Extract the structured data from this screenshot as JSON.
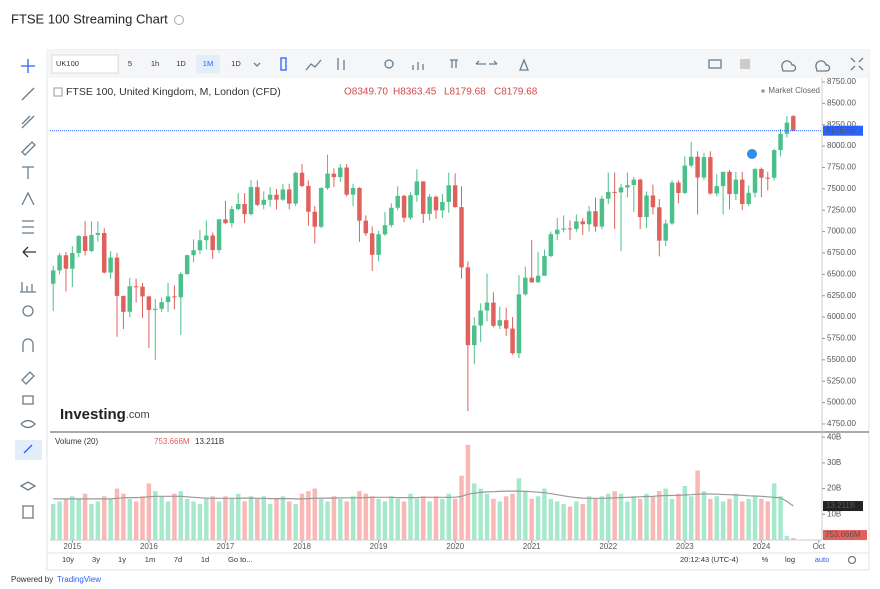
{
  "header": {
    "title": "FTSE 100 Streaming Chart"
  },
  "toolbar": {
    "symbol": "UK100",
    "intervals": [
      "5",
      "1h",
      "1D",
      "1M",
      "1D"
    ]
  },
  "chart_data": {
    "type": "candlestick",
    "legend_title": "FTSE 100, United Kingdom, M, London (CFD)",
    "ohlc_legend": [
      "O8349.70",
      "H8363.45",
      "L8179.68",
      "C8179.68"
    ],
    "status": "Market Closed",
    "up_color": "#4cc08a",
    "down_color": "#e0605c",
    "last_price": {
      "value": 8179.68,
      "label": "8179.68"
    },
    "xlim": [
      -0.5,
      120.5
    ],
    "xticks": [
      {
        "value": 3,
        "label": "2015"
      },
      {
        "value": 15,
        "label": "2016"
      },
      {
        "value": 27,
        "label": "2017"
      },
      {
        "value": 39,
        "label": "2018"
      },
      {
        "value": 51,
        "label": "2019"
      },
      {
        "value": 63,
        "label": "2020"
      },
      {
        "value": 75,
        "label": "2021"
      },
      {
        "value": 87,
        "label": "2022"
      },
      {
        "value": 99,
        "label": "2023"
      },
      {
        "value": 111,
        "label": "2024"
      },
      {
        "value": 120,
        "label": "Oct"
      }
    ],
    "ylim": [
      4656,
      8773
    ],
    "yticks": [
      {
        "value": 4750,
        "label": "4750.00"
      },
      {
        "value": 5000,
        "label": "5000.00"
      },
      {
        "value": 5250,
        "label": "5250.00"
      },
      {
        "value": 5500,
        "label": "5500.00"
      },
      {
        "value": 5750,
        "label": "5750.00"
      },
      {
        "value": 6000,
        "label": "6000.00"
      },
      {
        "value": 6250,
        "label": "6250.00"
      },
      {
        "value": 6500,
        "label": "6500.00"
      },
      {
        "value": 6750,
        "label": "6750.00"
      },
      {
        "value": 7000,
        "label": "7000.00"
      },
      {
        "value": 7250,
        "label": "7250.00"
      },
      {
        "value": 7500,
        "label": "7500.00"
      },
      {
        "value": 7750,
        "label": "7750.00"
      },
      {
        "value": 8000,
        "label": "8000.00"
      },
      {
        "value": 8250,
        "label": "8250.00"
      },
      {
        "value": 8500,
        "label": "8500.00"
      },
      {
        "value": 8750,
        "label": "8750.00"
      }
    ],
    "candles": [
      [
        6390,
        6600,
        6070,
        6546
      ],
      [
        6546,
        6750,
        6500,
        6723
      ],
      [
        6723,
        6760,
        6300,
        6566
      ],
      [
        6566,
        6830,
        6350,
        6749
      ],
      [
        6749,
        6960,
        6700,
        6947
      ],
      [
        6947,
        7120,
        6720,
        6773
      ],
      [
        6773,
        7120,
        6760,
        6961
      ],
      [
        6961,
        7120,
        6880,
        6984
      ],
      [
        6984,
        7040,
        6510,
        6521
      ],
      [
        6521,
        6770,
        6450,
        6696
      ],
      [
        6696,
        6750,
        5770,
        6248
      ],
      [
        6248,
        6250,
        5860,
        6062
      ],
      [
        6062,
        6460,
        6000,
        6361
      ],
      [
        6361,
        6450,
        6170,
        6356
      ],
      [
        6356,
        6400,
        5990,
        6242
      ],
      [
        6242,
        6250,
        5640,
        6084
      ],
      [
        6084,
        6210,
        5500,
        6097
      ],
      [
        6097,
        6230,
        6060,
        6175
      ],
      [
        6175,
        6400,
        6060,
        6242
      ],
      [
        6242,
        6370,
        6090,
        6231
      ],
      [
        6231,
        6530,
        5790,
        6504
      ],
      [
        6504,
        6730,
        6490,
        6724
      ],
      [
        6724,
        6910,
        6640,
        6782
      ],
      [
        6782,
        7020,
        6740,
        6899
      ],
      [
        6899,
        7130,
        6790,
        6954
      ],
      [
        6954,
        6990,
        6680,
        6784
      ],
      [
        6784,
        7150,
        6750,
        7143
      ],
      [
        7143,
        7360,
        7090,
        7099
      ],
      [
        7099,
        7300,
        7050,
        7263
      ],
      [
        7263,
        7450,
        7250,
        7323
      ],
      [
        7323,
        7450,
        7100,
        7204
      ],
      [
        7204,
        7600,
        7190,
        7520
      ],
      [
        7520,
        7600,
        7300,
        7313
      ],
      [
        7313,
        7470,
        7260,
        7372
      ],
      [
        7372,
        7520,
        7290,
        7431
      ],
      [
        7431,
        7500,
        7260,
        7373
      ],
      [
        7373,
        7560,
        7360,
        7493
      ],
      [
        7493,
        7560,
        7260,
        7327
      ],
      [
        7327,
        7700,
        7300,
        7688
      ],
      [
        7688,
        7790,
        7520,
        7534
      ],
      [
        7534,
        7600,
        7070,
        7232
      ],
      [
        7232,
        7300,
        6860,
        7057
      ],
      [
        7057,
        7520,
        7040,
        7509
      ],
      [
        7509,
        7900,
        7490,
        7678
      ],
      [
        7678,
        7740,
        7520,
        7637
      ],
      [
        7637,
        7790,
        7580,
        7749
      ],
      [
        7749,
        7790,
        7410,
        7432
      ],
      [
        7432,
        7560,
        7300,
        7510
      ],
      [
        7510,
        7520,
        6880,
        7128
      ],
      [
        7128,
        7190,
        6950,
        6980
      ],
      [
        6980,
        7060,
        6540,
        6728
      ],
      [
        6728,
        7010,
        6650,
        6969
      ],
      [
        6969,
        7230,
        6950,
        7075
      ],
      [
        7075,
        7330,
        7050,
        7279
      ],
      [
        7279,
        7530,
        7250,
        7418
      ],
      [
        7418,
        7430,
        7110,
        7162
      ],
      [
        7162,
        7460,
        7140,
        7426
      ],
      [
        7426,
        7730,
        7350,
        7587
      ],
      [
        7587,
        7590,
        7100,
        7207
      ],
      [
        7207,
        7440,
        7130,
        7408
      ],
      [
        7408,
        7420,
        7150,
        7248
      ],
      [
        7248,
        7440,
        7160,
        7347
      ],
      [
        7347,
        7690,
        7220,
        7542
      ],
      [
        7542,
        7680,
        7280,
        7286
      ],
      [
        7286,
        7530,
        6450,
        6581
      ],
      [
        6581,
        6650,
        4900,
        5672
      ],
      [
        5672,
        6000,
        5450,
        5901
      ],
      [
        5901,
        6160,
        5710,
        6077
      ],
      [
        6077,
        6510,
        5950,
        6170
      ],
      [
        6170,
        6290,
        5880,
        5898
      ],
      [
        5898,
        6120,
        5860,
        5964
      ],
      [
        5964,
        6110,
        5780,
        5866
      ],
      [
        5866,
        6000,
        5560,
        5577
      ],
      [
        5577,
        6490,
        5520,
        6266
      ],
      [
        6266,
        6590,
        6250,
        6461
      ],
      [
        6461,
        6900,
        6400,
        6407
      ],
      [
        6407,
        6760,
        6400,
        6483
      ],
      [
        6483,
        6790,
        6520,
        6714
      ],
      [
        6714,
        7000,
        6700,
        6970
      ],
      [
        6970,
        7160,
        6900,
        7023
      ],
      [
        7023,
        7190,
        6990,
        7037
      ],
      [
        7037,
        7130,
        6900,
        7032
      ],
      [
        7032,
        7200,
        7000,
        7120
      ],
      [
        7120,
        7160,
        6960,
        7086
      ],
      [
        7086,
        7300,
        7000,
        7238
      ],
      [
        7238,
        7400,
        7000,
        7059
      ],
      [
        7059,
        7420,
        7030,
        7385
      ],
      [
        7385,
        7690,
        7320,
        7464
      ],
      [
        7464,
        7690,
        7030,
        7458
      ],
      [
        7458,
        7560,
        6770,
        7516
      ],
      [
        7516,
        7690,
        7400,
        7545
      ],
      [
        7545,
        7640,
        7230,
        7608
      ],
      [
        7608,
        7620,
        7030,
        7169
      ],
      [
        7169,
        7470,
        7040,
        7423
      ],
      [
        7423,
        7550,
        7200,
        7284
      ],
      [
        7284,
        7380,
        6710,
        6894
      ],
      [
        6894,
        7140,
        6830,
        7095
      ],
      [
        7095,
        7600,
        7080,
        7573
      ],
      [
        7573,
        7600,
        7330,
        7452
      ],
      [
        7452,
        7880,
        7440,
        7772
      ],
      [
        7772,
        8050,
        7750,
        7876
      ],
      [
        7876,
        7940,
        7200,
        7632
      ],
      [
        7632,
        7920,
        7600,
        7871
      ],
      [
        7871,
        7940,
        7430,
        7446
      ],
      [
        7446,
        7670,
        7410,
        7532
      ],
      [
        7532,
        7700,
        7200,
        7699
      ],
      [
        7699,
        7720,
        7260,
        7439
      ],
      [
        7439,
        7700,
        7370,
        7608
      ],
      [
        7608,
        7700,
        7250,
        7322
      ],
      [
        7322,
        7540,
        7300,
        7454
      ],
      [
        7454,
        7740,
        7400,
        7733
      ],
      [
        7733,
        7750,
        7400,
        7631
      ],
      [
        7631,
        7700,
        7480,
        7630
      ],
      [
        7630,
        7970,
        7600,
        7953
      ],
      [
        7953,
        8200,
        7880,
        8144
      ],
      [
        8144,
        8350,
        8100,
        8275
      ],
      [
        8349.7,
        8363.45,
        8179.68,
        8179.68
      ]
    ],
    "volume": {
      "type": "bar",
      "title": "Volume (20)",
      "up_color": "#a6e8cb",
      "down_color": "#f8b8b6",
      "ma_color": "#999999",
      "ylim": [
        0,
        42
      ],
      "yticks": [
        {
          "value": 10,
          "label": "10B"
        },
        {
          "value": 20,
          "label": "20B"
        },
        {
          "value": 30,
          "label": "30B"
        },
        {
          "value": 40,
          "label": "40B"
        }
      ],
      "values": [
        14,
        15,
        16,
        17,
        16,
        18,
        14,
        15,
        17,
        16,
        20,
        18,
        16,
        15,
        17,
        22,
        19,
        17,
        15,
        18,
        19,
        16,
        15,
        14,
        16,
        17,
        15,
        17,
        16,
        18,
        15,
        17,
        16,
        17,
        14,
        16,
        17,
        15,
        14,
        18,
        19,
        20,
        16,
        15,
        17,
        16,
        15,
        17,
        19,
        18,
        17,
        16,
        15,
        17,
        16,
        15,
        18,
        16,
        17,
        15,
        17,
        16,
        18,
        16,
        25,
        37,
        22,
        20,
        18,
        16,
        15,
        17,
        18,
        24,
        19,
        16,
        17,
        20,
        16,
        15,
        14,
        13,
        15,
        14,
        17,
        16,
        17,
        18,
        19,
        18,
        15,
        17,
        16,
        18,
        17,
        19,
        20,
        16,
        18,
        21,
        17,
        27,
        19,
        16,
        17,
        15,
        16,
        18,
        15,
        16,
        17,
        16,
        15,
        22,
        17,
        1.6,
        0.753666
      ],
      "last_value_label": "753.666M",
      "ma": [
        16,
        16,
        16,
        16,
        16,
        16,
        16,
        16,
        16,
        16,
        16.2,
        16.4,
        16.5,
        16.5,
        16.6,
        16.8,
        17,
        17,
        17,
        17,
        17,
        16.8,
        16.6,
        16.4,
        16.3,
        16.2,
        16.2,
        16.2,
        16.2,
        16.2,
        16.3,
        16.3,
        16.2,
        16.2,
        16.1,
        16.1,
        16.1,
        16.1,
        16,
        16,
        16.1,
        16.2,
        16.3,
        16.3,
        16.3,
        16.4,
        16.4,
        16.4,
        16.4,
        16.5,
        16.6,
        16.6,
        16.6,
        16.6,
        16.5,
        16.5,
        16.5,
        16.5,
        16.6,
        16.6,
        16.6,
        16.6,
        16.6,
        16.6,
        17,
        17.8,
        18.2,
        18.5,
        18.7,
        18.8,
        18.9,
        19,
        19,
        19,
        18.9,
        18.8,
        18.6,
        18.4,
        18,
        17.6,
        17.2,
        16.8,
        16.5,
        16.3,
        16.2,
        16.2,
        16.2,
        16.3,
        16.4,
        16.5,
        16.6,
        16.7,
        16.8,
        16.9,
        17,
        17.2,
        17.3,
        17.3,
        17.4,
        17.5,
        17.6,
        17.8,
        17.9,
        17.9,
        17.8,
        17.7,
        17.6,
        17.5,
        17.4,
        17.2,
        17.1,
        17,
        16.8,
        16.6,
        16.4,
        15,
        13.211
      ],
      "ma_label": "13.211B"
    }
  },
  "logo": [
    "Investing",
    ".com"
  ],
  "bottom_bar": {
    "ranges": [
      "10y",
      "3y",
      "1y",
      "1m",
      "7d",
      "1d",
      "Go to..."
    ],
    "clock": "20:12:43 (UTC-4)",
    "scales": [
      "%",
      "log",
      "auto"
    ]
  },
  "footer": {
    "prefix": "Powered by",
    "link": "TradingView"
  }
}
